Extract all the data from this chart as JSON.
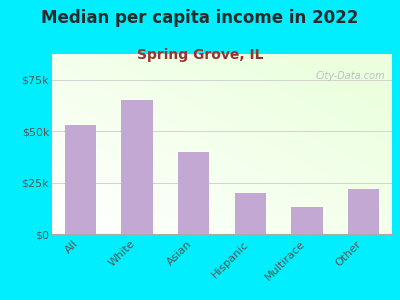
{
  "title": "Median per capita income in 2022",
  "subtitle": "Spring Grove, IL",
  "categories": [
    "All",
    "White",
    "Asian",
    "Hispanic",
    "Multirace",
    "Other"
  ],
  "values": [
    53000,
    65000,
    40000,
    20000,
    13000,
    22000
  ],
  "bar_color": "#c4a8d4",
  "background_outer": "#00eeff",
  "title_color": "#2a2a2a",
  "subtitle_color": "#993333",
  "tick_color": "#555555",
  "ylim": [
    0,
    87500
  ],
  "yticks": [
    0,
    25000,
    50000,
    75000
  ],
  "watermark": "City-Data.com",
  "title_fontsize": 12,
  "subtitle_fontsize": 10
}
